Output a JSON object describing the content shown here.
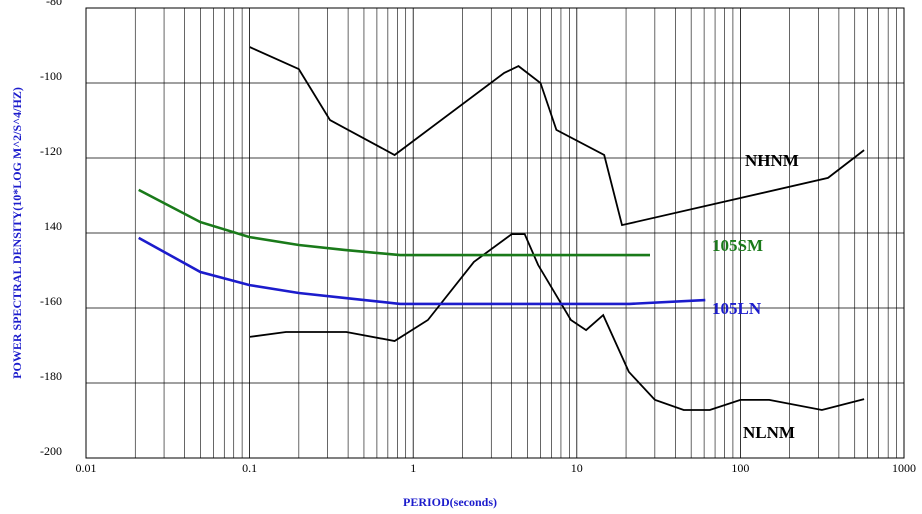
{
  "chart_data": {
    "type": "line",
    "x_label": "PERIOD(seconds)",
    "y_label": "POWER SPECTRAL DENSITY(10*LOG M^2/S^4/HZ)",
    "log_x": true,
    "grid": true,
    "minor_grid": true,
    "xlim": [
      0.01,
      1000
    ],
    "xticks": [
      0.01,
      0.1,
      1,
      10,
      100,
      1000
    ],
    "ylim": [
      -200,
      -80
    ],
    "yticks": [
      -80,
      -100,
      -120,
      {
        "value": -140,
        "label": "140"
      },
      -160,
      -180,
      -200
    ],
    "series": [
      {
        "name": "NHNM",
        "color": "#000000",
        "x": [
          0.1,
          0.2,
          0.31,
          0.77,
          3.6,
          4.4,
          6,
          7.5,
          14.7,
          18.9,
          343,
          570
        ],
        "values": [
          -90.4,
          -96.3,
          -109.9,
          -119.2,
          -97.3,
          -95.5,
          -100,
          -112.5,
          -119.2,
          -137.9,
          -125.3,
          -117.9
        ]
      },
      {
        "name": "NLNM",
        "color": "#000000",
        "x": [
          0.1,
          0.167,
          0.39,
          0.77,
          1.23,
          2.35,
          4,
          4.8,
          5.8,
          9.2,
          11.4,
          14.5,
          20.8,
          30,
          45,
          65,
          100,
          150,
          315,
          570
        ],
        "values": [
          -167.7,
          -166.4,
          -166.4,
          -168.8,
          -163.2,
          -147.7,
          -140.3,
          -140.3,
          -148.5,
          -163.2,
          -165.9,
          -161.9,
          -177,
          -184.5,
          -187.2,
          -187.2,
          -184.5,
          -184.5,
          -187.2,
          -184.3
        ]
      },
      {
        "name": "105SM",
        "color": "#1a7a1a",
        "x": [
          0.021,
          0.05,
          0.1,
          0.2,
          0.38,
          0.83,
          28
        ],
        "values": [
          -128.5,
          -137.1,
          -141.1,
          -143.2,
          -144.5,
          -145.9,
          -145.9
        ]
      },
      {
        "name": "105LN",
        "color": "#1c1ccc",
        "x": [
          0.021,
          0.05,
          0.1,
          0.2,
          0.38,
          0.83,
          21,
          61
        ],
        "values": [
          -141.3,
          -150.4,
          -153.9,
          -156,
          -157.3,
          -158.9,
          -158.9,
          -157.9
        ]
      }
    ]
  }
}
